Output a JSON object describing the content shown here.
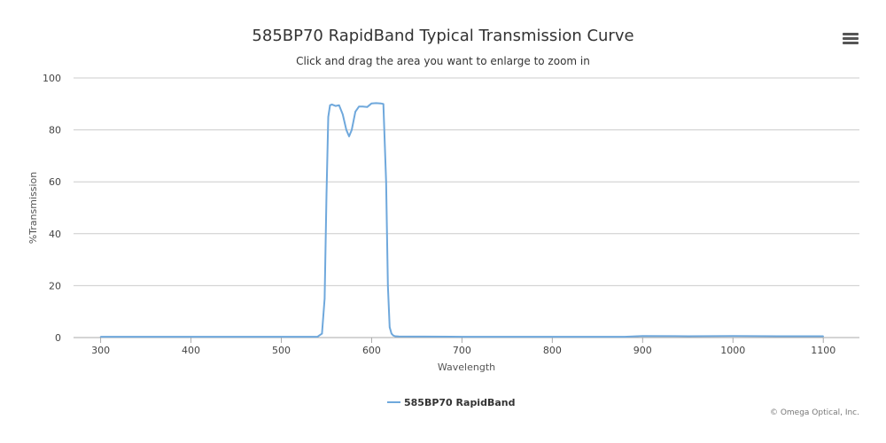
{
  "title": "585BP70 RapidBand Typical Transmission Curve",
  "subtitle": "Click and drag the area you want to enlarge to zoom in",
  "credits": "© Omega Optical, Inc.",
  "menu_icon": "hamburger-menu-icon",
  "colors": {
    "series": "#6fa8dc",
    "grid": "#cccccc",
    "axis": "#aaaaaa"
  },
  "chart_data": {
    "type": "line",
    "title": "585BP70 RapidBand Typical Transmission Curve",
    "subtitle": "Click and drag the area you want to enlarge to zoom in",
    "xlabel": "Wavelength",
    "ylabel": "%Transmission",
    "xlim": [
      270,
      1140
    ],
    "ylim": [
      0,
      100
    ],
    "xticks": [
      300,
      400,
      500,
      600,
      700,
      800,
      900,
      1000,
      1100
    ],
    "yticks": [
      0,
      20,
      40,
      60,
      80,
      100
    ],
    "grid": true,
    "legend_position": "bottom-center",
    "series": [
      {
        "name": "585BP70 RapidBand",
        "x": [
          300,
          400,
          500,
          540,
          545,
          548,
          550,
          552,
          554,
          556,
          560,
          564,
          568,
          572,
          575,
          578,
          582,
          586,
          590,
          595,
          600,
          605,
          610,
          613,
          616,
          618,
          620,
          622,
          624,
          626,
          630,
          700,
          800,
          880,
          900,
          950,
          1000,
          1050,
          1100
        ],
        "y": [
          0.3,
          0.3,
          0.3,
          0.3,
          1.5,
          15,
          55,
          85,
          89.5,
          89.8,
          89.2,
          89.5,
          86,
          80,
          77.5,
          80,
          87,
          89,
          89,
          88.8,
          90.2,
          90.3,
          90.2,
          90,
          60,
          20,
          4,
          1.5,
          0.8,
          0.5,
          0.4,
          0.3,
          0.3,
          0.3,
          0.6,
          0.5,
          0.6,
          0.5,
          0.5
        ]
      }
    ]
  }
}
